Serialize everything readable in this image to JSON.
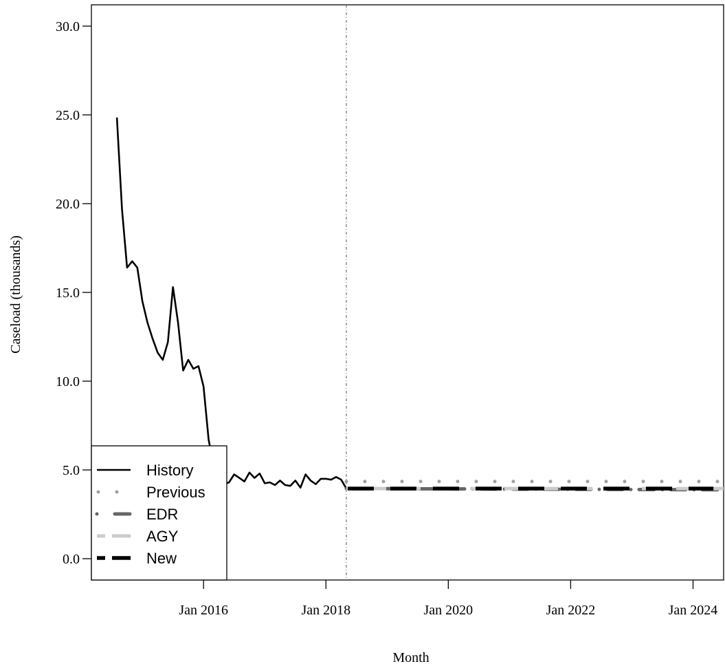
{
  "chart_data": {
    "type": "line",
    "title": "",
    "xlabel": "Month",
    "ylabel": "Caseload (thousands)",
    "x_range": [
      "2014-03",
      "2024-07"
    ],
    "ylim": [
      -1.2,
      31.2
    ],
    "y_ticks": [
      0,
      5,
      10,
      15,
      20,
      25,
      30
    ],
    "y_tick_labels": [
      "0.0",
      "5.0",
      "10.0",
      "15.0",
      "20.0",
      "25.0",
      "30.0"
    ],
    "x_ticks": [
      "2016-01",
      "2018-01",
      "2020-01",
      "2022-01",
      "2024-01"
    ],
    "x_tick_labels": [
      "Jan 2016",
      "Jan 2018",
      "Jan 2020",
      "Jan 2022",
      "Jan 2024"
    ],
    "forecast_start": "2018-05",
    "grid": false,
    "legend_position": "bottom-left",
    "series": [
      {
        "name": "History",
        "style": "solid",
        "color": "#000000",
        "x": [
          "2014-08",
          "2014-09",
          "2014-10",
          "2014-11",
          "2014-12",
          "2015-01",
          "2015-02",
          "2015-03",
          "2015-04",
          "2015-05",
          "2015-06",
          "2015-07",
          "2015-08",
          "2015-09",
          "2015-10",
          "2015-11",
          "2015-12",
          "2016-01",
          "2016-02",
          "2016-03",
          "2016-04",
          "2016-05",
          "2016-06",
          "2016-07",
          "2016-08",
          "2016-09",
          "2016-10",
          "2016-11",
          "2016-12",
          "2017-01",
          "2017-02",
          "2017-03",
          "2017-04",
          "2017-05",
          "2017-06",
          "2017-07",
          "2017-08",
          "2017-09",
          "2017-10",
          "2017-11",
          "2017-12",
          "2018-01",
          "2018-02",
          "2018-03",
          "2018-04",
          "2018-05"
        ],
        "values": [
          24.85,
          19.7,
          16.4,
          16.75,
          16.4,
          14.5,
          13.3,
          12.4,
          11.6,
          11.2,
          12.2,
          15.3,
          13.3,
          10.6,
          11.2,
          10.7,
          10.85,
          9.7,
          6.7,
          5.2,
          5.6,
          4.2,
          4.3,
          4.75,
          4.55,
          4.35,
          4.85,
          4.55,
          4.8,
          4.25,
          4.3,
          4.15,
          4.4,
          4.15,
          4.1,
          4.4,
          4.0,
          4.75,
          4.4,
          4.2,
          4.5,
          4.5,
          4.45,
          4.6,
          4.45,
          3.95
        ]
      },
      {
        "name": "Previous",
        "style": "dotted",
        "color": "#a0a0a0",
        "x": [
          "2018-05",
          "2024-07"
        ],
        "values": [
          4.35,
          4.35
        ]
      },
      {
        "name": "EDR",
        "style": "dotdash",
        "color": "#666666",
        "x": [
          "2018-05",
          "2024-07"
        ],
        "values": [
          3.95,
          3.88
        ]
      },
      {
        "name": "AGY",
        "style": "dashed",
        "color": "#cccccc",
        "x": [
          "2018-05",
          "2024-07"
        ],
        "values": [
          3.95,
          3.95
        ]
      },
      {
        "name": "New",
        "style": "dashed",
        "color": "#000000",
        "x": [
          "2018-05",
          "2024-05"
        ],
        "values": [
          3.95,
          3.95
        ]
      }
    ]
  }
}
